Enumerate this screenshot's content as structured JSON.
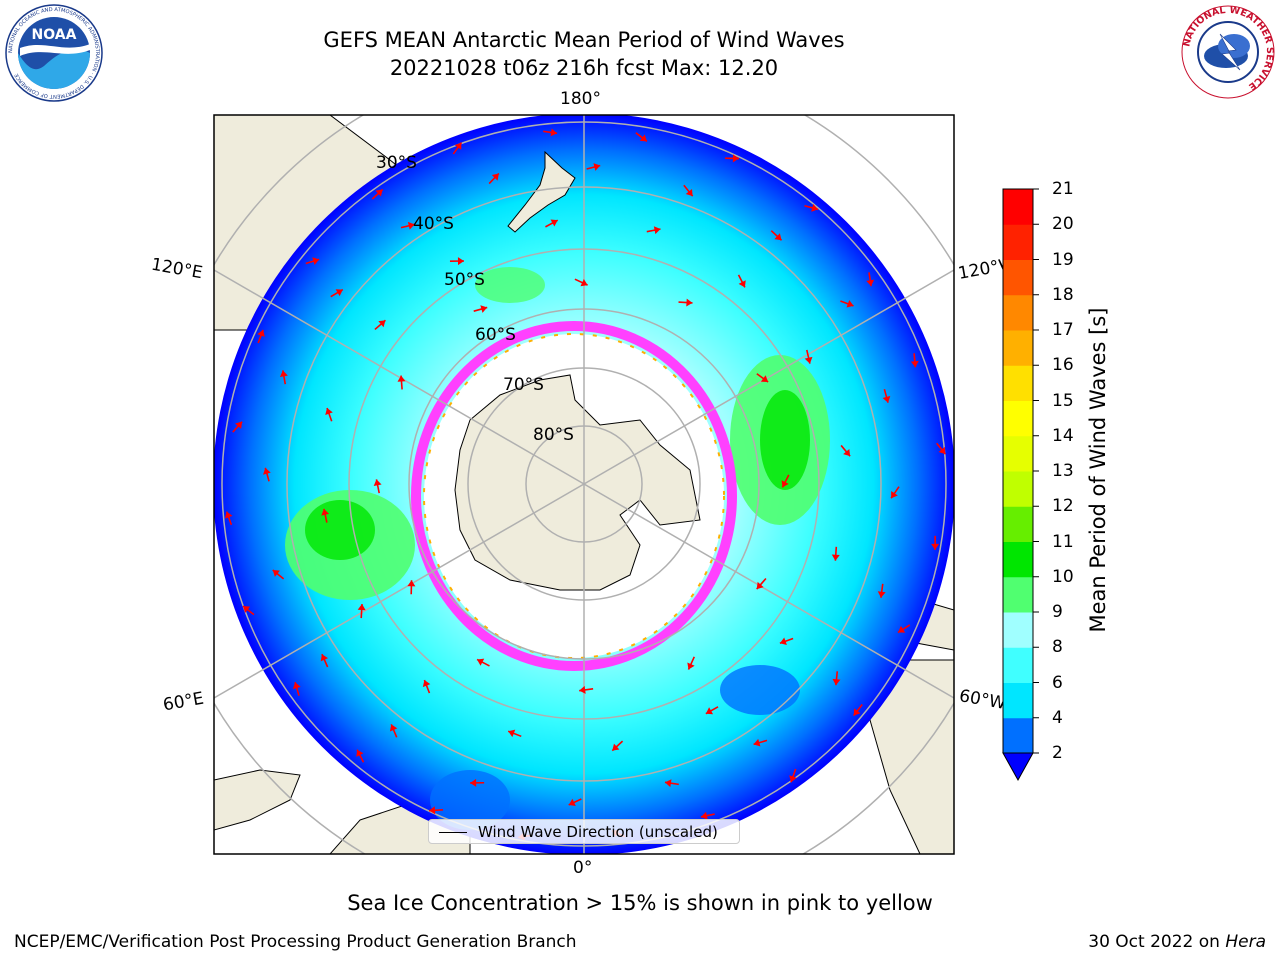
{
  "header": {
    "title_line1": "GEFS MEAN Antarctic Mean Period of Wind Waves",
    "title_line2": "20221028 t06z 216h fcst   Max: 12.20"
  },
  "map": {
    "longitude_labels": [
      "180°",
      "120°E",
      "120°W",
      "60°E",
      "60°W",
      "0°"
    ],
    "latitude_labels": [
      "30°S",
      "40°S",
      "50°S",
      "60°S",
      "70°S",
      "80°S"
    ],
    "legend_label": "Wind Wave Direction (unscaled)",
    "colors": {
      "land": "#efecdc",
      "ocean_low": "#0000ff",
      "ocean_mid": "#00ffff",
      "ice": "#ff40ff",
      "arrow": "#ff0000"
    }
  },
  "colorbar": {
    "label": "Mean Period of Wind Waves [s]",
    "ticks": [
      "2",
      "4",
      "6",
      "8",
      "9",
      "10",
      "11",
      "12",
      "13",
      "14",
      "15",
      "16",
      "17",
      "18",
      "19",
      "20",
      "21"
    ],
    "colors": [
      "#0070ff",
      "#00e6ff",
      "#40ffff",
      "#a0ffff",
      "#50ff70",
      "#00e600",
      "#66ee00",
      "#c0ff00",
      "#e6ff00",
      "#ffff00",
      "#ffe000",
      "#ffb000",
      "#ff8800",
      "#ff5500",
      "#ff2200",
      "#ff0000"
    ],
    "extend_color": "#0000ff"
  },
  "logos": {
    "noaa_text": "NOAA",
    "noaa_ring_text": "NATIONAL OCEANIC AND ATMOSPHERIC ADMINISTRATION · U.S. DEPARTMENT OF COMMERCE",
    "nws_ring_text": "NATIONAL WEATHER SERVICE"
  },
  "footer": {
    "ice_note": "Sea Ice Concentration > 15% is shown in pink to yellow",
    "credit": "NCEP/EMC/Verification Post Processing Product Generation Branch",
    "date_prefix": "30 Oct 2022 on ",
    "machine": "Hera"
  }
}
